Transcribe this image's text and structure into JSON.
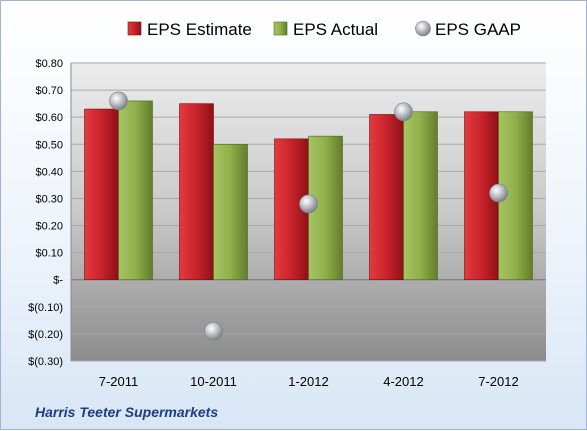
{
  "company": "Harris Teeter Supermarkets",
  "chart_data": {
    "type": "bar",
    "categories": [
      "7-2011",
      "10-2011",
      "1-2012",
      "4-2012",
      "7-2012"
    ],
    "series": [
      {
        "name": "EPS Estimate",
        "kind": "bar",
        "color": "#c8232b",
        "values": [
          0.63,
          0.65,
          0.52,
          0.61,
          0.62
        ]
      },
      {
        "name": "EPS Actual",
        "kind": "bar",
        "color": "#8fb04a",
        "values": [
          0.66,
          0.5,
          0.53,
          0.62,
          0.62
        ]
      },
      {
        "name": "EPS GAAP",
        "kind": "scatter",
        "color": "#b9bcc2",
        "values": [
          0.66,
          -0.19,
          0.28,
          0.62,
          0.32
        ]
      }
    ],
    "ylim": [
      -0.3,
      0.8
    ],
    "yticks": [
      0.8,
      0.7,
      0.6,
      0.5,
      0.4,
      0.3,
      0.2,
      0.1,
      0,
      -0.1,
      -0.2,
      -0.3
    ],
    "ytick_labels": [
      "$0.80",
      "$0.70",
      "$0.60",
      "$0.50",
      "$0.40",
      "$0.30",
      "$0.20",
      "$0.10",
      "$-",
      "$(0.10)",
      "$(0.20)",
      "$(0.30)"
    ],
    "grid": true,
    "legend_position": "top"
  }
}
